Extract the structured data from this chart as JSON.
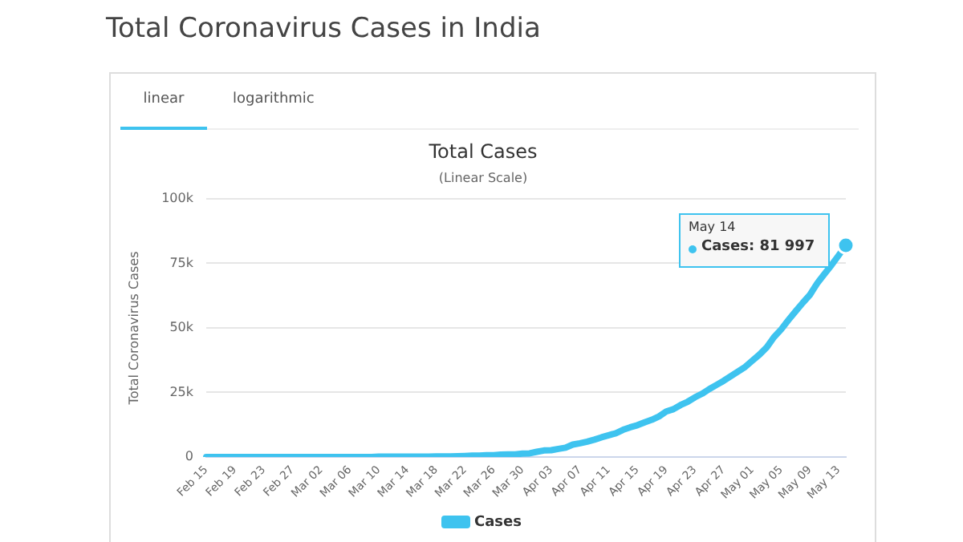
{
  "chart_data": {
    "type": "line",
    "title": "Total Cases",
    "subtitle": "(Linear Scale)",
    "ylabel": "Total Coronavirus Cases",
    "annotations": [
      "Total Coronavirus Cases in India",
      "linear",
      "logarithmic",
      "May 14",
      "Cases: 81 997"
    ],
    "categories": [
      "Feb 15",
      null,
      null,
      null,
      "Feb 19",
      null,
      null,
      null,
      "Feb 23",
      null,
      null,
      null,
      "Feb 27",
      null,
      null,
      null,
      "Mar 02",
      null,
      null,
      null,
      "Mar 06",
      null,
      null,
      null,
      "Mar 10",
      null,
      null,
      null,
      "Mar 14",
      null,
      null,
      null,
      "Mar 18",
      null,
      null,
      null,
      "Mar 22",
      null,
      null,
      null,
      "Mar 26",
      null,
      null,
      null,
      "Mar 30",
      null,
      null,
      null,
      "Apr 03",
      null,
      null,
      null,
      "Apr 07",
      null,
      null,
      null,
      "Apr 11",
      null,
      null,
      null,
      "Apr 15",
      null,
      null,
      null,
      "Apr 19",
      null,
      null,
      null,
      "Apr 23",
      null,
      null,
      null,
      "Apr 27",
      null,
      null,
      null,
      "May 01",
      null,
      null,
      null,
      "May 05",
      null,
      null,
      null,
      "May 09",
      null,
      null,
      null,
      "May 13",
      null
    ],
    "series": [
      {
        "name": "Cases",
        "color": "#3ec3ef",
        "values": [
          0,
          0,
          0,
          0,
          0,
          0,
          0,
          0,
          0,
          0,
          0,
          0,
          0,
          0,
          0,
          0,
          0,
          0,
          0,
          0,
          0,
          0,
          0,
          0,
          100,
          100,
          100,
          100,
          100,
          100,
          100,
          100,
          200,
          200,
          200,
          300,
          400,
          500,
          500,
          700,
          700,
          900,
          1000,
          1000,
          1300,
          1400,
          2000,
          2500,
          2600,
          3100,
          3600,
          4800,
          5300,
          5900,
          6700,
          7600,
          8400,
          9200,
          10500,
          11500,
          12300,
          13400,
          14400,
          15700,
          17600,
          18500,
          20100,
          21400,
          23100,
          24500,
          26300,
          27900,
          29500,
          31300,
          33100,
          34900,
          37300,
          39700,
          42500,
          46400,
          49400,
          53000,
          56400,
          59700,
          62800,
          67200,
          70800,
          74300,
          78100,
          81997
        ]
      }
    ],
    "ylim": [
      0,
      100000
    ],
    "yticks": [
      {
        "value": 0,
        "label": "0"
      },
      {
        "value": 25000,
        "label": "25k"
      },
      {
        "value": 50000,
        "label": "50k"
      },
      {
        "value": 75000,
        "label": "75k"
      },
      {
        "value": 100000,
        "label": "100k"
      }
    ],
    "grid": "y",
    "legend": "bottom",
    "marker": "none",
    "line_style": "solid"
  }
}
